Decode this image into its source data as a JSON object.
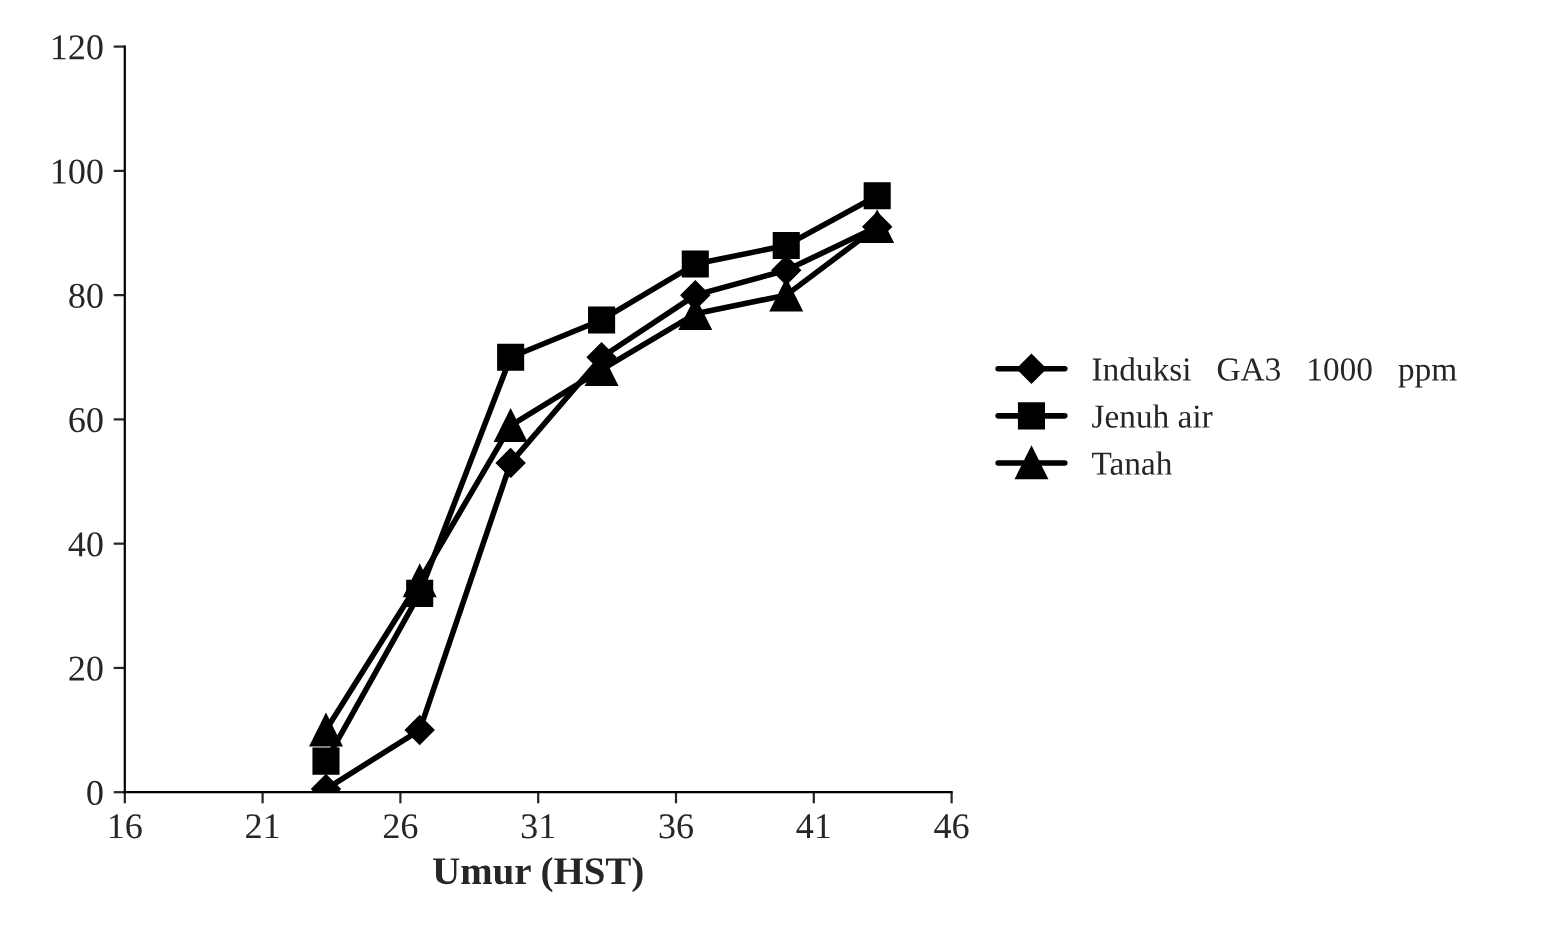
{
  "chart_data": {
    "type": "line",
    "xlabel": "Umur (HST)",
    "x": [
      23.3,
      26.7,
      30,
      33.3,
      36.7,
      40,
      43.3
    ],
    "series": [
      {
        "name": "Induksi   GA3   1000   ppm",
        "color": "#000000",
        "marker": "diamond",
        "values": [
          0.5,
          10,
          53,
          70,
          80,
          84,
          91
        ]
      },
      {
        "name": "Jenuh air",
        "color": "#000000",
        "marker": "square",
        "values": [
          5,
          32,
          70,
          76,
          85,
          88,
          96
        ]
      },
      {
        "name": "Tanah",
        "color": "#000000",
        "marker": "triangle",
        "values": [
          10,
          34,
          59,
          68,
          77,
          80,
          91
        ]
      }
    ],
    "xlim": [
      16,
      46
    ],
    "xticks": [
      16,
      21,
      26,
      31,
      36,
      41,
      46
    ],
    "ylim": [
      0,
      120
    ],
    "yticks": [
      0,
      20,
      40,
      60,
      80,
      100,
      120
    ],
    "grid": false,
    "legend": "right",
    "line_style": "solid"
  }
}
